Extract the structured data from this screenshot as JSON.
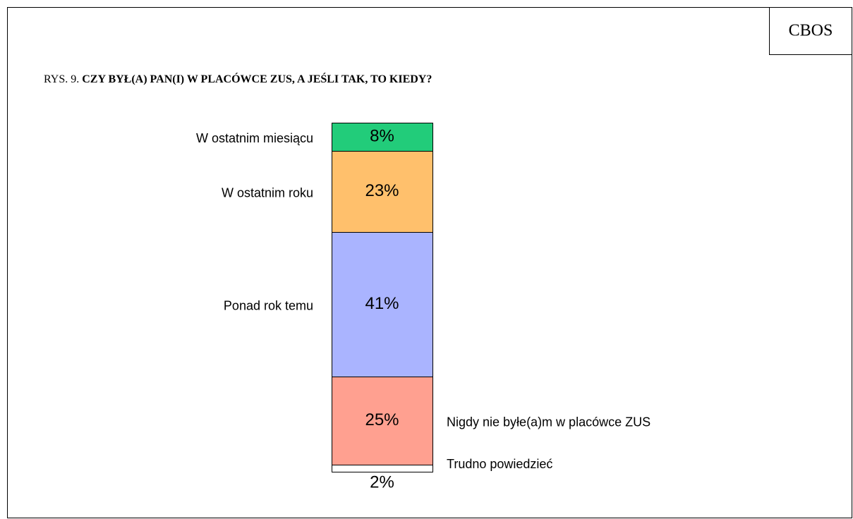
{
  "chart_data": {
    "type": "stacked-bar",
    "source": "CBOS",
    "figure_label": "RYS. 9.",
    "title": "CZY BYŁ(A) PAN(I) W PLACÓWCE ZUS, A JEŚLI TAK, TO KIEDY?",
    "series": [
      {
        "name": "W ostatnim miesiącu",
        "color": "#22cc7a",
        "values": [
          8
        ],
        "value_labels": [
          "8%"
        ]
      },
      {
        "name": "W ostatnim roku",
        "color": "#ffc06c",
        "values": [
          23
        ],
        "value_labels": [
          "23%"
        ]
      },
      {
        "name": "Ponad rok temu",
        "color": "#aab4ff",
        "values": [
          41
        ],
        "value_labels": [
          "41%"
        ]
      },
      {
        "name": "Nigdy nie byłe(a)m w placówce ZUS",
        "color": "#ffa090",
        "values": [
          25
        ],
        "value_labels": [
          "25%"
        ]
      },
      {
        "name": "Trudno powiedzieć",
        "color": "#ffffff",
        "values": [
          2
        ],
        "value_labels": [
          "2%"
        ]
      }
    ]
  }
}
